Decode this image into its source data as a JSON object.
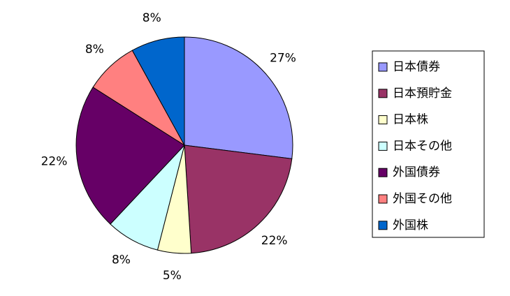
{
  "chart_data": {
    "type": "pie",
    "categories": [
      "日本債券",
      "日本預貯金",
      "日本株",
      "日本その他",
      "外国債券",
      "外国その他",
      "外国株"
    ],
    "values": [
      27,
      22,
      5,
      8,
      22,
      8,
      8
    ],
    "value_labels": [
      "27%",
      "22%",
      "5%",
      "8%",
      "22%",
      "8%",
      "8%"
    ],
    "colors": [
      "#9999ff",
      "#993366",
      "#ffffcc",
      "#ccffff",
      "#660066",
      "#ff8080",
      "#0066cc"
    ],
    "legend": "right"
  }
}
